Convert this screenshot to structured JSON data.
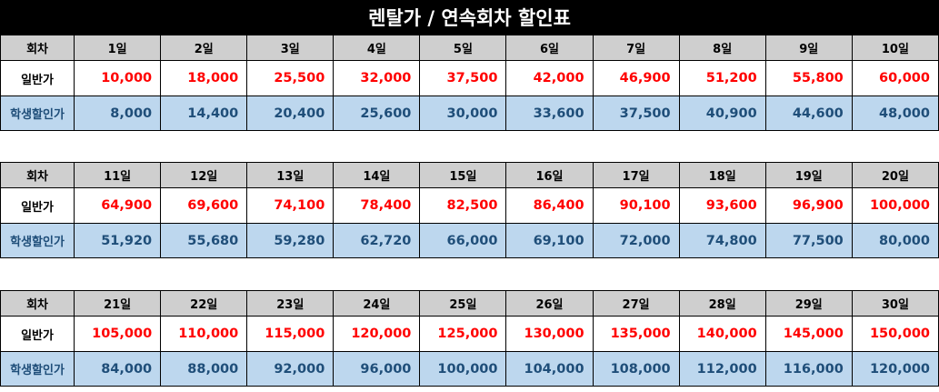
{
  "title": "렌탈가 / 연속회차 할인표",
  "row_labels": {
    "header": "회차",
    "regular": "일반가",
    "student": "학생할인가"
  },
  "colors": {
    "title_bg": "#000000",
    "header_bg": "#cfcfcf",
    "student_bg": "#bdd7ee",
    "regular_price": "#ff0000",
    "student_price": "#1f4e79"
  },
  "blocks": [
    {
      "days": [
        "1일",
        "2일",
        "3일",
        "4일",
        "5일",
        "6일",
        "7일",
        "8일",
        "9일",
        "10일"
      ],
      "regular": [
        "10,000",
        "18,000",
        "25,500",
        "32,000",
        "37,500",
        "42,000",
        "46,900",
        "51,200",
        "55,800",
        "60,000"
      ],
      "student": [
        "8,000",
        "14,400",
        "20,400",
        "25,600",
        "30,000",
        "33,600",
        "37,500",
        "40,900",
        "44,600",
        "48,000"
      ]
    },
    {
      "days": [
        "11일",
        "12일",
        "13일",
        "14일",
        "15일",
        "16일",
        "17일",
        "18일",
        "19일",
        "20일"
      ],
      "regular": [
        "64,900",
        "69,600",
        "74,100",
        "78,400",
        "82,500",
        "86,400",
        "90,100",
        "93,600",
        "96,900",
        "100,000"
      ],
      "student": [
        "51,920",
        "55,680",
        "59,280",
        "62,720",
        "66,000",
        "69,100",
        "72,000",
        "74,800",
        "77,500",
        "80,000"
      ]
    },
    {
      "days": [
        "21일",
        "22일",
        "23일",
        "24일",
        "25일",
        "26일",
        "27일",
        "28일",
        "29일",
        "30일"
      ],
      "regular": [
        "105,000",
        "110,000",
        "115,000",
        "120,000",
        "125,000",
        "130,000",
        "135,000",
        "140,000",
        "145,000",
        "150,000"
      ],
      "student": [
        "84,000",
        "88,000",
        "92,000",
        "96,000",
        "100,000",
        "104,000",
        "108,000",
        "112,000",
        "116,000",
        "120,000"
      ]
    }
  ]
}
